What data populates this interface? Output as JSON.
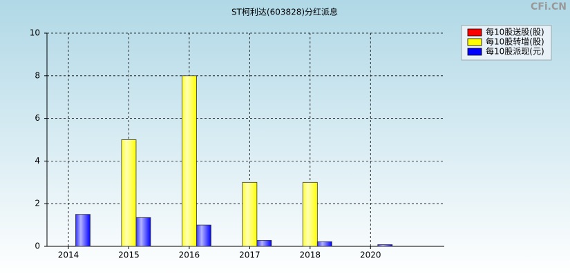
{
  "chart_data": {
    "type": "bar",
    "title": "ST柯利达(603828)分红派息",
    "watermark": "CFi.CN",
    "categories": [
      "2014",
      "2015",
      "2016",
      "2017",
      "2018",
      "2020"
    ],
    "series": [
      {
        "name": "每10股送股(股)",
        "color": "#ff0000",
        "values": [
          null,
          null,
          null,
          null,
          null,
          null
        ]
      },
      {
        "name": "每10股转增(股)",
        "color": "#ffff00",
        "values": [
          null,
          5,
          8,
          3,
          3,
          null
        ]
      },
      {
        "name": "每10股派现(元)",
        "color": "#0000ff",
        "values": [
          1.5,
          1.35,
          1.0,
          0.28,
          0.22,
          0.08
        ]
      }
    ],
    "ylim": [
      0,
      10
    ],
    "yticks": [
      0,
      2,
      4,
      6,
      8,
      10
    ],
    "grid": true,
    "legend": "top-right"
  }
}
